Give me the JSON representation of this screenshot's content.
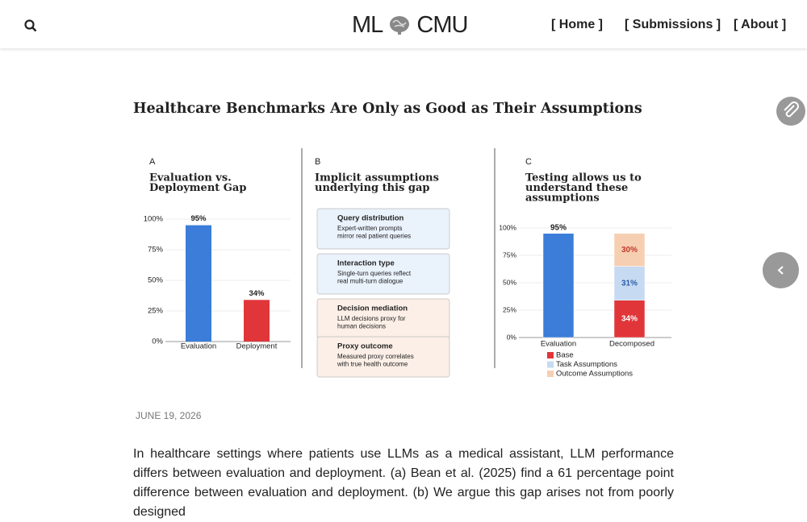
{
  "nav": {
    "logo_left": "ML",
    "logo_right": "CMU",
    "links": [
      "[ Home ]",
      "[ Submissions ]",
      "[ About ]"
    ]
  },
  "post": {
    "title": "Healthcare Benchmarks Are Only as Good as Their Assumptions",
    "date": "JUNE 19, 2026",
    "body": "In healthcare settings where patients use LLMs as a medical assistant, LLM performance differs between evaluation and deployment. (a) Bean et al. (2025) find a 61 percentage point difference between evaluation and deployment. (b) We argue this gap arises not from poorly designed"
  },
  "figure": {
    "panel_a": {
      "letter": "A",
      "title_lines": [
        "Evaluation vs.",
        "Deployment Gap"
      ],
      "categories": [
        "Evaluation",
        "Deployment"
      ],
      "values": [
        95,
        34
      ],
      "value_labels": [
        "95%",
        "34%"
      ],
      "colors": [
        "#3b7dd8",
        "#e0363a"
      ],
      "ylim": [
        0,
        100
      ],
      "yticks": [
        {
          "value": 0,
          "label": "0%"
        },
        {
          "value": 25,
          "label": "25%"
        },
        {
          "value": 50,
          "label": "50%"
        },
        {
          "value": 75,
          "label": "75%"
        },
        {
          "value": 100,
          "label": "100%"
        }
      ]
    },
    "panel_b": {
      "letter": "B",
      "title_lines": [
        "Implicit assumptions",
        "underlying this gap"
      ],
      "boxes": [
        {
          "title": "Query distribution",
          "text_lines": [
            "Expert-written prompts",
            "mirror real patient queries"
          ],
          "color": "#eaf2fc"
        },
        {
          "title": "Interaction type",
          "text_lines": [
            "Single-turn queries reflect",
            "real multi-turn dialogue"
          ],
          "color": "#eaf2fc"
        },
        {
          "title": "Decision mediation",
          "text_lines": [
            "LLM decisions proxy for",
            "human decisions"
          ],
          "color": "#fcefe7"
        },
        {
          "title": "Proxy outcome",
          "text_lines": [
            "Measured proxy correlates",
            "with true health outcome"
          ],
          "color": "#fcefe7"
        }
      ]
    },
    "panel_c": {
      "letter": "C",
      "title_lines": [
        "Testing allows us to",
        "understand these",
        "assumptions"
      ],
      "categories": [
        "Evaluation",
        "Decomposed"
      ],
      "series": [
        {
          "name": "Base",
          "values": [
            95,
            34
          ],
          "value_labels": [
            "95%",
            "34%"
          ],
          "colors": [
            "#3b7dd8",
            "#e0363a"
          ]
        },
        {
          "name": "Task Assumptions",
          "values": [
            null,
            31
          ],
          "value_labels": [
            null,
            "31%"
          ],
          "colors": [
            null,
            "#c6daf2"
          ]
        },
        {
          "name": "Outcome Assumptions",
          "values": [
            null,
            30
          ],
          "value_labels": [
            null,
            "30%"
          ],
          "colors": [
            null,
            "#f6cfb2"
          ]
        }
      ],
      "ylim": [
        0,
        100
      ],
      "yticks": [
        {
          "value": 0,
          "label": "0%"
        },
        {
          "value": 25,
          "label": "25%"
        },
        {
          "value": 50,
          "label": "50%"
        },
        {
          "value": 75,
          "label": "75%"
        },
        {
          "value": 100,
          "label": "100%"
        }
      ]
    }
  }
}
